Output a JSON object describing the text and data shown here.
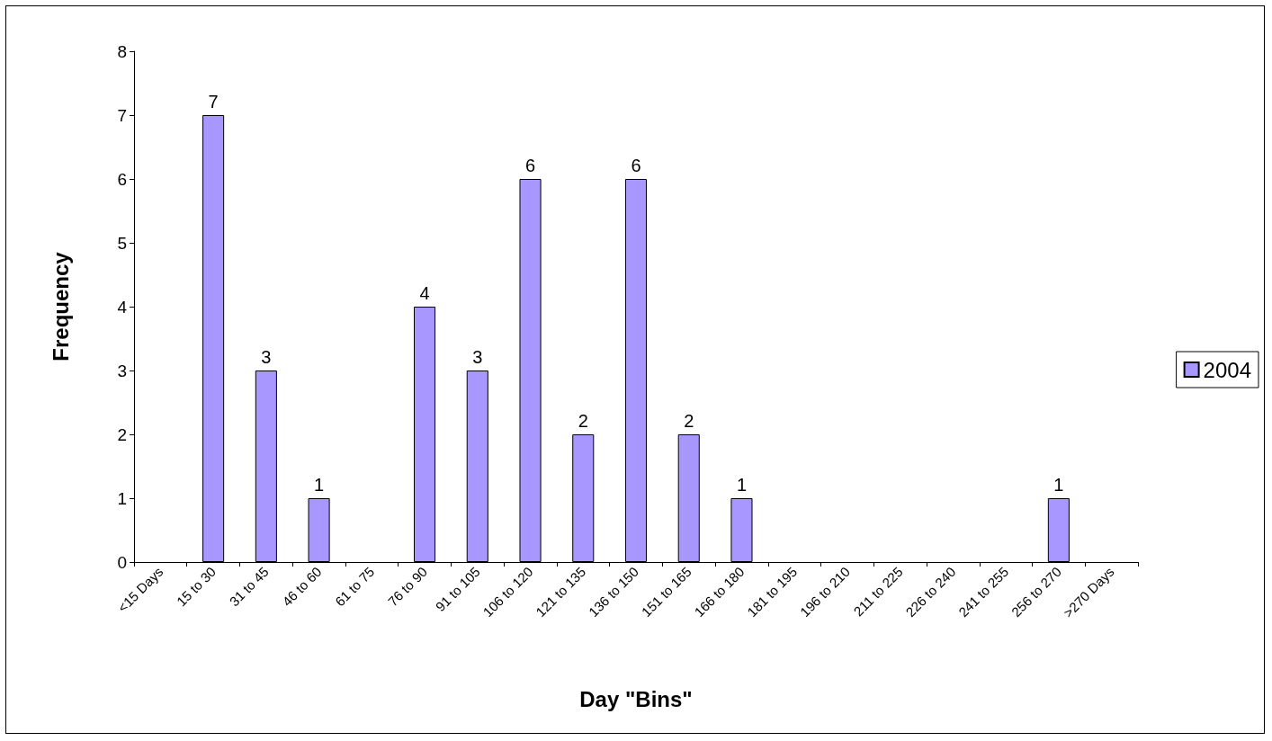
{
  "chart_data": {
    "type": "bar",
    "xlabel": "Day \"Bins\"",
    "ylabel": "Frequency",
    "categories": [
      "<15 Days",
      "15 to 30",
      "31 to 45",
      "46 to 60",
      "61 to 75",
      "76 to 90",
      "91 to 105",
      "106 to 120",
      "121 to 135",
      "136 to 150",
      "151 to 165",
      "166 to 180",
      "181 to 195",
      "196 to 210",
      "211 to 225",
      "226 to 240",
      "241 to 255",
      "256 to 270",
      ">270 Days"
    ],
    "series": [
      {
        "name": "2004",
        "color": "#a797ff",
        "values": [
          0,
          7,
          3,
          1,
          0,
          4,
          3,
          6,
          2,
          6,
          2,
          1,
          0,
          0,
          0,
          0,
          0,
          1,
          0
        ],
        "value_labels": [
          null,
          "7",
          "3",
          "1",
          null,
          "4",
          "3",
          "6",
          "2",
          "6",
          "2",
          "1",
          null,
          null,
          null,
          null,
          null,
          "1",
          null
        ]
      }
    ],
    "ylim": [
      0,
      8
    ],
    "yticks": [
      0,
      1,
      2,
      3,
      4,
      5,
      6,
      7,
      8
    ],
    "grid": false,
    "legend": "right"
  }
}
